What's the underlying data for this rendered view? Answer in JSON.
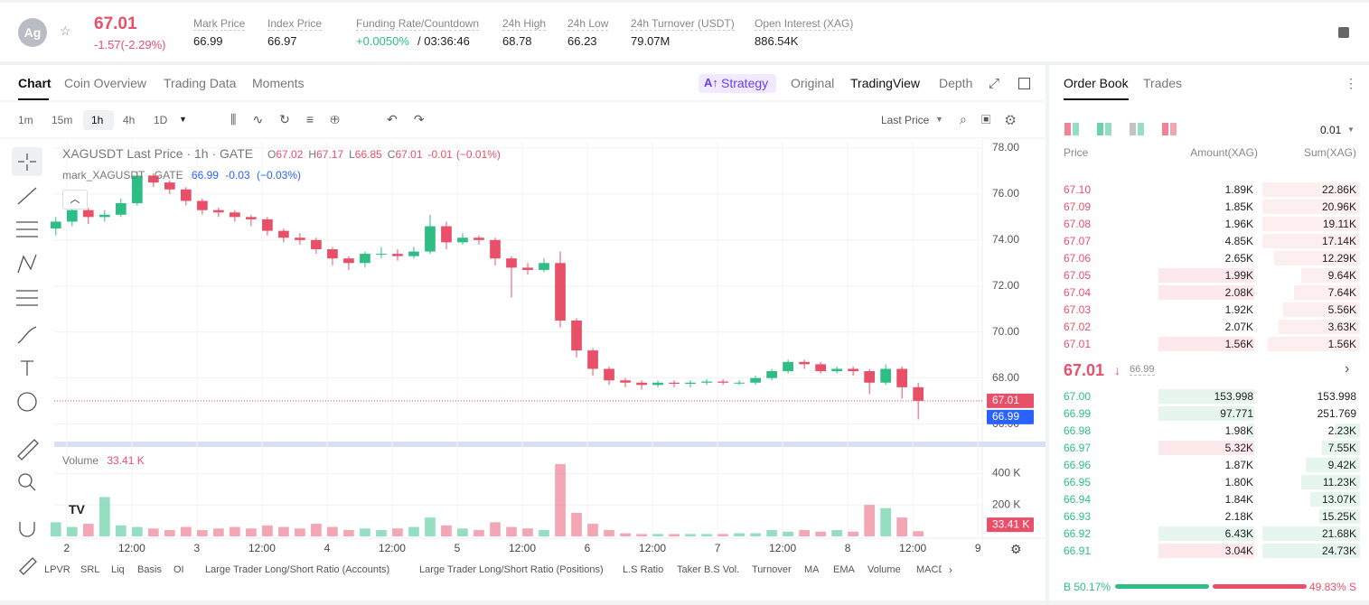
{
  "header": {
    "symbol_icon": "Ag",
    "price": "67.01",
    "change": "-1.57(-2.29%)",
    "stats": [
      {
        "label": "Mark Price",
        "value": "66.99"
      },
      {
        "label": "Index Price",
        "value": "66.97"
      },
      {
        "label": "Funding Rate/Countdown",
        "value": "+0.0050%",
        "value2": "/ 03:36:46"
      },
      {
        "label": "24h High",
        "value": "68.78"
      },
      {
        "label": "24h Low",
        "value": "66.23"
      },
      {
        "label": "24h Turnover (USDT)",
        "value": "79.07M"
      },
      {
        "label": "Open Interest (XAG)",
        "value": "886.54K"
      }
    ]
  },
  "tabs": [
    "Chart",
    "Coin Overview",
    "Trading Data",
    "Moments"
  ],
  "view_tabs": [
    "Strategy",
    "Original",
    "TradingView",
    "Depth"
  ],
  "intervals": [
    "1m",
    "15m",
    "1h",
    "4h",
    "1D"
  ],
  "price_type": "Last Price",
  "chart_data": {
    "type": "candlestick",
    "title": "XAGUSDT Last Price · 1h · GATE",
    "ohlc_legend": [
      {
        "key": "O",
        "value": "67.02"
      },
      {
        "key": "H",
        "value": "67.17"
      },
      {
        "key": "L",
        "value": "66.85"
      },
      {
        "key": "C",
        "value": "67.01"
      }
    ],
    "change": "-0.01",
    "change_pct": "(−0.01%)",
    "mark_legend": {
      "name": "mark_XAGUSDT · GATE",
      "value": "66.99",
      "change": "-0.03",
      "change_pct": "(−0.03%)"
    },
    "up_color": "#2ebd85",
    "down_color": "#e8506a",
    "grid": true,
    "x": [
      -2,
      1,
      4,
      7,
      10,
      13,
      16,
      19,
      22,
      25,
      28,
      31,
      34,
      37,
      40,
      43,
      46,
      49,
      52,
      55,
      58,
      61,
      64,
      67,
      70,
      73,
      76,
      79,
      82,
      85,
      88,
      91,
      94,
      97,
      100,
      103,
      106,
      109,
      112,
      115,
      118,
      121,
      124,
      127,
      130,
      133,
      136,
      139,
      142,
      145,
      148,
      151,
      154,
      157
    ],
    "open": [
      74.5,
      74.8,
      75.3,
      75.0,
      75.1,
      75.6,
      76.8,
      76.5,
      76.2,
      75.7,
      75.3,
      75.2,
      75.0,
      74.9,
      74.4,
      74.1,
      74.0,
      73.6,
      73.2,
      73.0,
      73.4,
      73.4,
      73.3,
      73.5,
      74.6,
      73.9,
      74.1,
      74.0,
      73.2,
      72.8,
      72.7,
      73.0,
      70.5,
      69.2,
      68.4,
      67.9,
      67.8,
      67.7,
      67.8,
      67.75,
      67.8,
      67.85,
      67.8,
      67.8,
      68.0,
      68.3,
      68.7,
      68.6,
      68.3,
      68.4,
      68.3,
      67.8,
      68.4,
      67.6
    ],
    "high": [
      75.0,
      75.5,
      75.4,
      75.3,
      75.8,
      77.0,
      76.9,
      76.6,
      76.3,
      75.8,
      75.4,
      75.3,
      75.1,
      75.0,
      74.5,
      74.3,
      74.1,
      73.7,
      73.3,
      73.5,
      73.7,
      73.6,
      73.7,
      75.1,
      74.8,
      74.3,
      74.2,
      74.1,
      73.3,
      73.0,
      73.2,
      73.5,
      70.6,
      69.3,
      68.5,
      68.0,
      67.9,
      67.9,
      67.9,
      67.9,
      67.95,
      67.95,
      67.9,
      68.1,
      68.4,
      68.8,
      68.8,
      68.7,
      68.5,
      68.5,
      68.4,
      68.6,
      68.5,
      67.8
    ],
    "low": [
      74.2,
      74.6,
      74.7,
      74.8,
      75.0,
      75.5,
      76.3,
      76.0,
      75.5,
      75.1,
      75.0,
      74.8,
      74.6,
      74.2,
      73.9,
      73.8,
      73.4,
      72.9,
      72.7,
      72.8,
      73.2,
      73.1,
      73.2,
      73.4,
      73.6,
      73.8,
      73.8,
      72.9,
      71.5,
      72.5,
      72.6,
      70.2,
      68.9,
      68.1,
      67.7,
      67.6,
      67.5,
      67.6,
      67.6,
      67.6,
      67.7,
      67.7,
      67.7,
      67.7,
      67.9,
      68.2,
      68.4,
      68.2,
      68.2,
      68.1,
      67.3,
      67.7,
      67.1,
      66.2
    ],
    "close": [
      74.8,
      75.3,
      75.0,
      75.1,
      75.6,
      76.8,
      76.5,
      76.2,
      75.7,
      75.3,
      75.2,
      75.0,
      74.9,
      74.4,
      74.1,
      74.0,
      73.6,
      73.2,
      73.0,
      73.4,
      73.4,
      73.3,
      73.5,
      74.6,
      73.9,
      74.1,
      74.0,
      73.2,
      72.8,
      72.7,
      73.0,
      70.5,
      69.2,
      68.4,
      67.9,
      67.8,
      67.7,
      67.8,
      67.75,
      67.8,
      67.85,
      67.8,
      67.8,
      68.0,
      68.3,
      68.7,
      68.6,
      68.3,
      68.4,
      68.3,
      67.8,
      68.4,
      67.6,
      67.01
    ],
    "xlim": [
      -2.3,
      168.8
    ],
    "xticks": [
      {
        "value": 0,
        "label": "2"
      },
      {
        "value": 12,
        "label": "12:00"
      },
      {
        "value": 24,
        "label": "3"
      },
      {
        "value": 36,
        "label": "12:00"
      },
      {
        "value": 48,
        "label": "4"
      },
      {
        "value": 60,
        "label": "12:00"
      },
      {
        "value": 72,
        "label": "5"
      },
      {
        "value": 84,
        "label": "12:00"
      },
      {
        "value": 96,
        "label": "6"
      },
      {
        "value": 108,
        "label": "12:00"
      },
      {
        "value": 120,
        "label": "7"
      },
      {
        "value": 132,
        "label": "12:00"
      },
      {
        "value": 144,
        "label": "8"
      },
      {
        "value": 156,
        "label": "12:00"
      },
      {
        "value": 168,
        "label": "9"
      }
    ],
    "ylim": [
      65.2,
      78.35
    ],
    "yticks": [
      {
        "value": 66,
        "label": "66.00"
      },
      {
        "value": 68,
        "label": "68.00"
      },
      {
        "value": 70,
        "label": "70.00"
      },
      {
        "value": 72,
        "label": "72.00"
      },
      {
        "value": 74,
        "label": "74.00"
      },
      {
        "value": 76,
        "label": "76.00"
      },
      {
        "value": 78,
        "label": "78.00"
      }
    ],
    "last_price": 67.01,
    "mark_price": 66.99,
    "volume": {
      "title": "Volume",
      "last_value_label": "33.41 K",
      "ylim": [
        0,
        540000
      ],
      "yticks": [
        {
          "value": 200000,
          "label": "200 K"
        },
        {
          "value": 400000,
          "label": "400 K"
        }
      ],
      "values": [
        90000,
        60000,
        80000,
        250000,
        70000,
        60000,
        50000,
        40000,
        60000,
        40000,
        50000,
        60000,
        50000,
        70000,
        60000,
        50000,
        80000,
        60000,
        40000,
        50000,
        40000,
        50000,
        60000,
        120000,
        70000,
        50000,
        40000,
        90000,
        60000,
        50000,
        40000,
        460000,
        150000,
        80000,
        40000,
        20000,
        15000,
        15000,
        15000,
        15000,
        15000,
        15000,
        20000,
        20000,
        40000,
        30000,
        40000,
        30000,
        40000,
        30000,
        200000,
        180000,
        120000,
        33410
      ]
    }
  },
  "indicators": [
    "LPVR",
    "SRL",
    "Liq",
    "Basis",
    "OI",
    "Large Trader Long/Short Ratio (Accounts)",
    "Large Trader Long/Short Ratio (Positions)",
    "L.S Ratio",
    "Taker B.S Vol.",
    "Turnover",
    "MA",
    "EMA",
    "Volume",
    "MACD"
  ],
  "order_book": {
    "tabs": [
      "Order Book",
      "Trades"
    ],
    "precision": "0.01",
    "columns": [
      "Price",
      "Amount(XAG)",
      "Sum(XAG)"
    ],
    "asks": [
      [
        "67.10",
        "1.89K",
        "22.86K"
      ],
      [
        "67.09",
        "1.85K",
        "20.96K"
      ],
      [
        "67.08",
        "1.96K",
        "19.11K"
      ],
      [
        "67.07",
        "4.85K",
        "17.14K"
      ],
      [
        "67.06",
        "2.65K",
        "12.29K"
      ],
      [
        "67.05",
        "1.99K",
        "9.64K"
      ],
      [
        "67.04",
        "2.08K",
        "7.64K"
      ],
      [
        "67.03",
        "1.92K",
        "5.56K"
      ],
      [
        "67.02",
        "2.07K",
        "3.63K"
      ],
      [
        "67.01",
        "1.56K",
        "1.56K"
      ]
    ],
    "last": "67.01",
    "mark": "66.99",
    "bids": [
      [
        "67.00",
        "153.998",
        "153.998"
      ],
      [
        "66.99",
        "97.771",
        "251.769"
      ],
      [
        "66.98",
        "1.98K",
        "2.23K"
      ],
      [
        "66.97",
        "5.32K",
        "7.55K"
      ],
      [
        "66.96",
        "1.87K",
        "9.42K"
      ],
      [
        "66.95",
        "1.80K",
        "11.23K"
      ],
      [
        "66.94",
        "1.84K",
        "13.07K"
      ],
      [
        "66.93",
        "2.18K",
        "15.25K"
      ],
      [
        "66.92",
        "6.43K",
        "21.68K"
      ],
      [
        "66.91",
        "3.04K",
        "24.73K"
      ]
    ],
    "buy_ratio": {
      "value": 50.17,
      "label": "B 50.17%"
    },
    "sell_ratio": {
      "value": 49.83,
      "label": "49.83% S"
    }
  }
}
